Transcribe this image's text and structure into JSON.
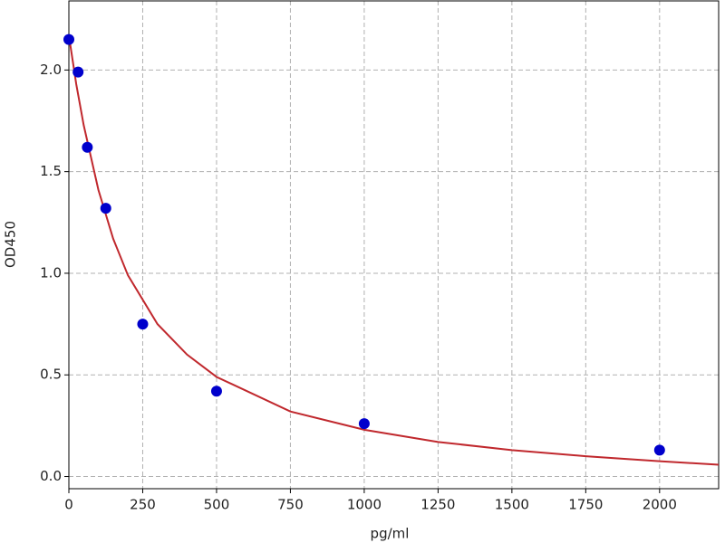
{
  "chart_data": {
    "type": "scatter",
    "x_label": "pg/ml",
    "y_label": "OD450",
    "xlim": [
      0,
      2200
    ],
    "ylim": [
      -0.06,
      2.34
    ],
    "xticks": [
      0,
      250,
      500,
      750,
      1000,
      1250,
      1500,
      1750,
      2000
    ],
    "yticks": [
      {
        "value": 0,
        "label": "0.0"
      },
      0.5,
      {
        "value": 1,
        "label": "1.0"
      },
      1.5,
      {
        "value": 2,
        "label": "2.0"
      }
    ],
    "grid": true,
    "points": {
      "color": "#0000cc",
      "x": [
        0,
        31.25,
        62.5,
        125,
        250,
        500,
        1000,
        2000
      ],
      "values": [
        2.15,
        1.99,
        1.62,
        1.32,
        0.75,
        0.42,
        0.26,
        0.13
      ]
    },
    "curve": {
      "color": "#c0282d",
      "x": [
        0,
        25,
        50,
        100,
        150,
        200,
        300,
        400,
        500,
        750,
        1000,
        1250,
        1500,
        1750,
        2000,
        2200
      ],
      "values": [
        2.17,
        1.93,
        1.73,
        1.41,
        1.17,
        0.99,
        0.75,
        0.6,
        0.49,
        0.32,
        0.23,
        0.17,
        0.13,
        0.1,
        0.075,
        0.058
      ]
    }
  }
}
